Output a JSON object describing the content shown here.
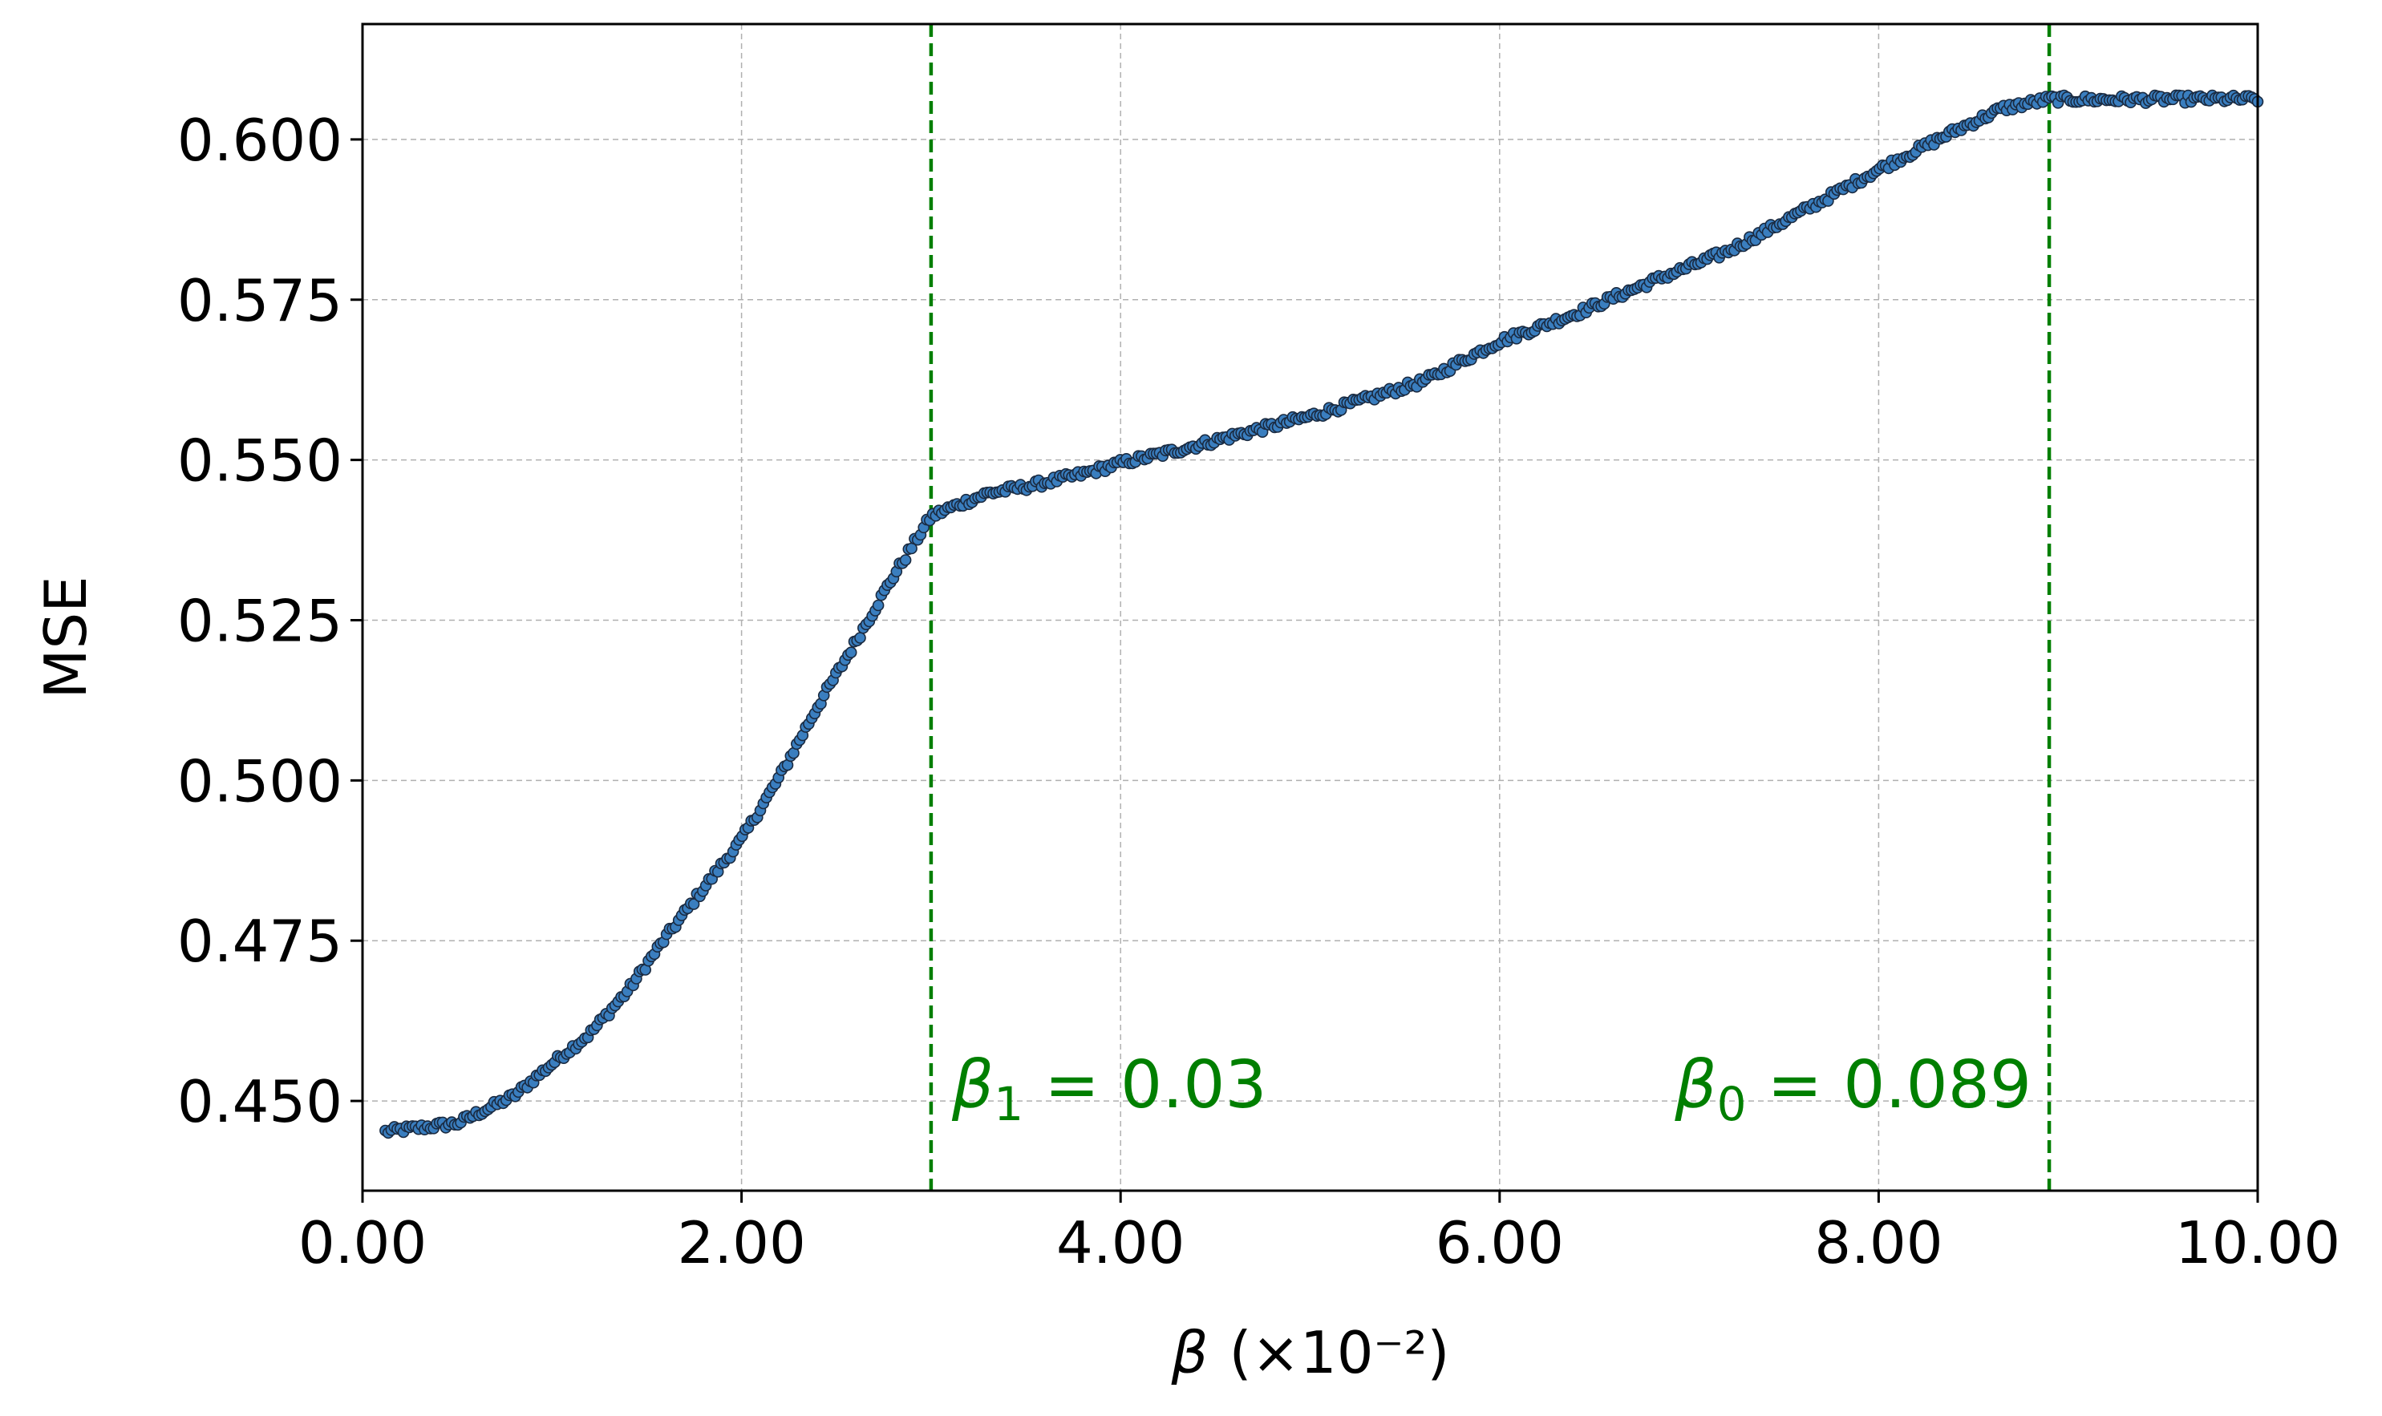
{
  "chart_data": {
    "type": "scatter",
    "title": "",
    "xlabel_symbol": "β",
    "xlabel_unit": "(×10⁻²)",
    "ylabel": "MSE",
    "xlim": [
      0.0,
      10.0
    ],
    "ylim": [
      0.436,
      0.618
    ],
    "x_ticks": [
      0.0,
      2.0,
      4.0,
      6.0,
      8.0,
      10.0
    ],
    "x_tick_labels": [
      "0.00",
      "2.00",
      "4.00",
      "6.00",
      "8.00",
      "10.00"
    ],
    "y_ticks": [
      0.45,
      0.475,
      0.5,
      0.525,
      0.55,
      0.575,
      0.6
    ],
    "y_tick_labels": [
      "0.450",
      "0.475",
      "0.500",
      "0.525",
      "0.550",
      "0.575",
      "0.600"
    ],
    "grid": true,
    "colors": {
      "marker_fill": "#3a7ebf",
      "marker_edge": "#1a2a40",
      "reference_line": "#007f00",
      "grid": "#b0b0b0",
      "axes": "#000000"
    },
    "series": [
      {
        "points": [
          [
            0.12,
            0.4452
          ],
          [
            0.5,
            0.4465
          ],
          [
            0.8,
            0.4508
          ],
          [
            1.0,
            0.4558
          ],
          [
            1.2,
            0.4605
          ],
          [
            1.4,
            0.4672
          ],
          [
            1.6,
            0.4755
          ],
          [
            1.8,
            0.4832
          ],
          [
            2.0,
            0.4908
          ],
          [
            2.2,
            0.5005
          ],
          [
            2.4,
            0.5115
          ],
          [
            2.6,
            0.5215
          ],
          [
            2.8,
            0.5318
          ],
          [
            3.0,
            0.5412
          ],
          [
            3.1,
            0.5425
          ],
          [
            3.3,
            0.5448
          ],
          [
            3.5,
            0.5458
          ],
          [
            3.8,
            0.5478
          ],
          [
            4.0,
            0.5495
          ],
          [
            4.3,
            0.5515
          ],
          [
            4.6,
            0.5538
          ],
          [
            5.0,
            0.5568
          ],
          [
            5.3,
            0.5595
          ],
          [
            5.6,
            0.5623
          ],
          [
            6.0,
            0.5685
          ],
          [
            6.4,
            0.5728
          ],
          [
            6.8,
            0.5778
          ],
          [
            7.2,
            0.5825
          ],
          [
            7.6,
            0.5888
          ],
          [
            8.0,
            0.5953
          ],
          [
            8.4,
            0.6013
          ],
          [
            8.65,
            0.6048
          ],
          [
            8.9,
            0.6063
          ],
          [
            9.2,
            0.6062
          ],
          [
            9.6,
            0.6063
          ],
          [
            10.0,
            0.6063
          ]
        ]
      }
    ],
    "reference_lines": [
      {
        "x": 3.0,
        "label_symbol": "β",
        "label_sub": "1",
        "label_value": " = 0.03",
        "label_side": "right"
      },
      {
        "x": 8.9,
        "label_symbol": "β",
        "label_sub": "0",
        "label_value": " = 0.089",
        "label_side": "left"
      }
    ]
  }
}
